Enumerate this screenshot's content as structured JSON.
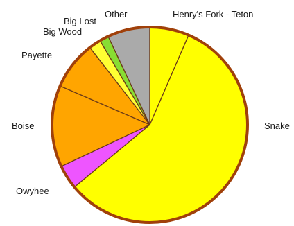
{
  "chart_data": {
    "type": "pie",
    "title": "",
    "start_angle_deg": 0,
    "direction": "clockwise",
    "outline_color": "#a0400a",
    "slices": [
      {
        "label": "Henry's Fork - Teton",
        "value": 6.5,
        "color": "#ffff00"
      },
      {
        "label": "Snake",
        "value": 57.5,
        "color": "#ffff00"
      },
      {
        "label": "Owyhee",
        "value": 4.0,
        "color": "#ee55ff"
      },
      {
        "label": "Boise",
        "value": 13.5,
        "color": "#ffa500"
      },
      {
        "label": "Payette",
        "value": 8.0,
        "color": "#ffa500"
      },
      {
        "label": "Big Wood",
        "value": 2.0,
        "color": "#ffff33"
      },
      {
        "label": "Big Lost",
        "value": 1.5,
        "color": "#88dd33"
      },
      {
        "label": "Other",
        "value": 7.0,
        "color": "#aaaaaa"
      }
    ]
  }
}
